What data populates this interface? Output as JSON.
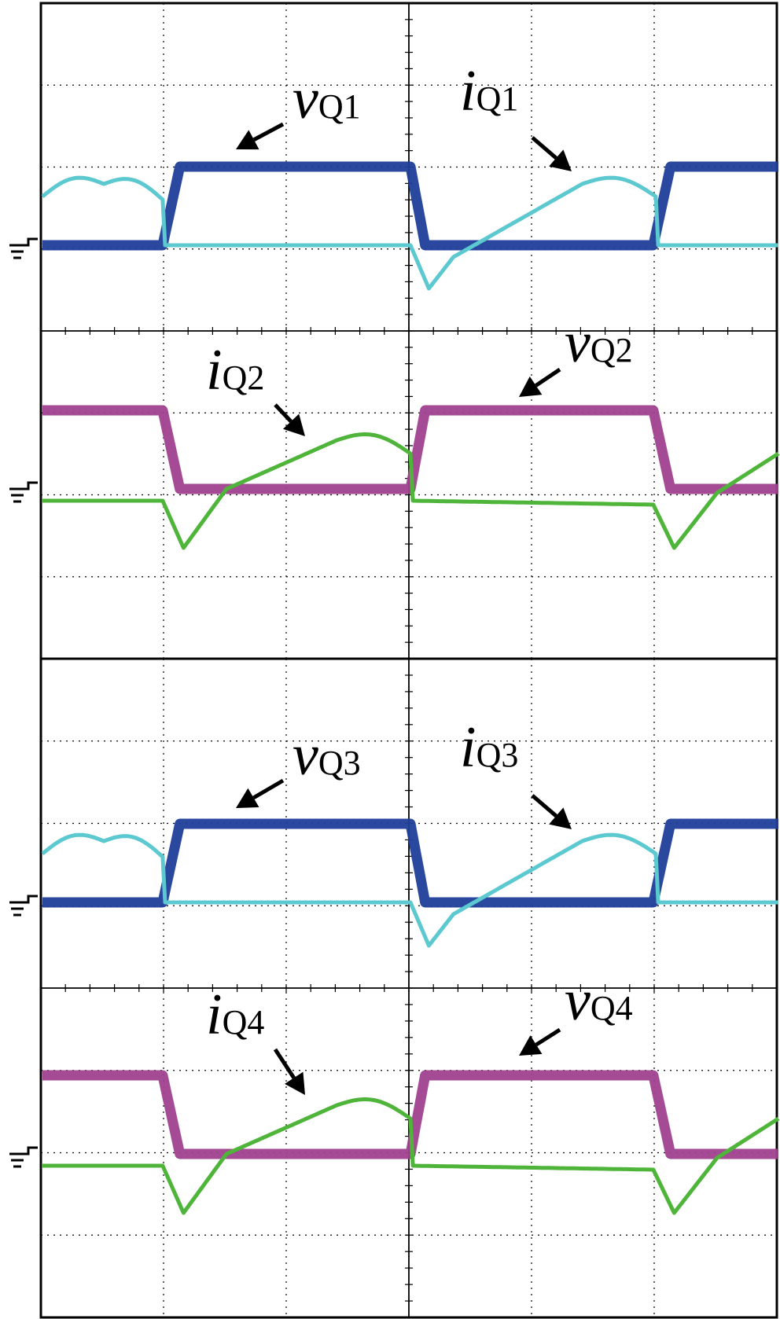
{
  "colors": {
    "vQ_odd": "#1f3f99",
    "iQ_odd": "#5cc8d0",
    "vQ_even": "#a0408f",
    "iQ_even": "#4fb53a",
    "grid": "#000000",
    "background": "#ffffff"
  },
  "ground_icon": "ground-symbol-icon",
  "chart_data": [
    {
      "type": "line",
      "panel": "top",
      "grid": true,
      "grid_divisions": {
        "x": 6,
        "y": 8
      },
      "x": [
        0.0,
        1.0,
        1.15,
        3.0,
        3.15,
        4.0,
        4.15,
        5.0,
        5.15,
        6.0
      ],
      "series": [
        {
          "name": "vQ1",
          "label_main": "v",
          "label_sub": "Q1",
          "color_key": "vQ_odd",
          "trace_ch": 2,
          "x": [
            0.0,
            0.98,
            1.12,
            2.0,
            3.0,
            3.12,
            3.3,
            4.98,
            5.12,
            6.0
          ],
          "y": [
            0.0,
            0.0,
            1.0,
            1.0,
            1.0,
            0.0,
            0.0,
            0.0,
            1.0,
            1.0
          ]
        },
        {
          "name": "iQ1",
          "label_main": "i",
          "label_sub": "Q1",
          "color_key": "iQ_odd",
          "trace_ch": 2,
          "x": [
            0.0,
            0.5,
            0.98,
            1.0,
            1.5,
            3.0,
            3.15,
            3.35,
            4.4,
            5.0,
            5.02,
            6.0
          ],
          "y": [
            0.62,
            0.78,
            0.58,
            0.0,
            0.0,
            0.0,
            -0.55,
            -0.15,
            0.78,
            0.62,
            0.0,
            0.0
          ]
        }
      ],
      "annotations": [
        {
          "text_main": "v",
          "text_sub": "Q1",
          "for": "vQ1"
        },
        {
          "text_main": "i",
          "text_sub": "Q1",
          "for": "iQ1"
        }
      ]
    },
    {
      "type": "line",
      "panel": "second",
      "grid": true,
      "grid_divisions": {
        "x": 6,
        "y": 8
      },
      "series": [
        {
          "name": "vQ2",
          "label_main": "v",
          "label_sub": "Q2",
          "color_key": "vQ_even",
          "trace_ch": 4,
          "x": [
            0.0,
            0.98,
            1.12,
            3.0,
            3.12,
            4.98,
            5.12,
            6.0
          ],
          "y": [
            1.0,
            1.0,
            0.0,
            0.0,
            1.0,
            1.0,
            0.0,
            0.0
          ]
        },
        {
          "name": "iQ2",
          "label_main": "i",
          "label_sub": "Q2",
          "color_key": "iQ_even",
          "trace_ch": 4,
          "x": [
            0.0,
            0.98,
            1.15,
            1.5,
            2.4,
            3.0,
            3.02,
            4.98,
            5.15,
            5.5,
            6.0
          ],
          "y": [
            -0.15,
            -0.15,
            -0.75,
            0.0,
            0.62,
            0.45,
            -0.15,
            -0.2,
            -0.75,
            -0.05,
            0.45
          ]
        }
      ],
      "annotations": [
        {
          "text_main": "i",
          "text_sub": "Q2",
          "for": "iQ2"
        },
        {
          "text_main": "v",
          "text_sub": "Q2",
          "for": "vQ2"
        }
      ]
    },
    {
      "type": "line",
      "panel": "third",
      "grid": true,
      "grid_divisions": {
        "x": 6,
        "y": 8
      },
      "series": [
        {
          "name": "vQ3",
          "label_main": "v",
          "label_sub": "Q3",
          "color_key": "vQ_odd",
          "trace_ch": 1,
          "x": [
            0.0,
            0.98,
            1.12,
            3.0,
            3.12,
            4.98,
            5.12,
            6.0
          ],
          "y": [
            0.0,
            0.0,
            1.0,
            1.0,
            0.0,
            0.0,
            1.0,
            1.0
          ]
        },
        {
          "name": "iQ3",
          "label_main": "i",
          "label_sub": "Q3",
          "color_key": "iQ_odd",
          "trace_ch": 1,
          "x": [
            0.0,
            0.5,
            0.98,
            1.0,
            3.0,
            3.15,
            3.35,
            4.4,
            5.0,
            5.02,
            6.0
          ],
          "y": [
            0.62,
            0.78,
            0.58,
            0.0,
            0.0,
            -0.55,
            -0.15,
            0.78,
            0.62,
            0.0,
            0.0
          ]
        }
      ],
      "annotations": [
        {
          "text_main": "v",
          "text_sub": "Q3",
          "for": "vQ3"
        },
        {
          "text_main": "i",
          "text_sub": "Q3",
          "for": "iQ3"
        }
      ]
    },
    {
      "type": "line",
      "panel": "bottom",
      "grid": true,
      "grid_divisions": {
        "x": 6,
        "y": 8
      },
      "series": [
        {
          "name": "vQ4",
          "label_main": "v",
          "label_sub": "Q4",
          "color_key": "vQ_even",
          "trace_ch": 3,
          "x": [
            0.0,
            0.98,
            1.12,
            3.0,
            3.12,
            4.98,
            5.12,
            6.0
          ],
          "y": [
            1.0,
            1.0,
            0.0,
            0.0,
            1.0,
            1.0,
            0.0,
            0.0
          ]
        },
        {
          "name": "iQ4",
          "label_main": "i",
          "label_sub": "Q4",
          "color_key": "iQ_even",
          "trace_ch": 3,
          "x": [
            0.0,
            0.98,
            1.15,
            1.5,
            2.4,
            3.0,
            3.02,
            4.98,
            5.15,
            5.5,
            6.0
          ],
          "y": [
            -0.15,
            -0.15,
            -0.75,
            0.0,
            0.62,
            0.45,
            -0.15,
            -0.2,
            -0.75,
            -0.05,
            0.45
          ]
        }
      ],
      "annotations": [
        {
          "text_main": "i",
          "text_sub": "Q4",
          "for": "iQ4"
        },
        {
          "text_main": "v",
          "text_sub": "Q4",
          "for": "vQ4"
        }
      ]
    }
  ]
}
